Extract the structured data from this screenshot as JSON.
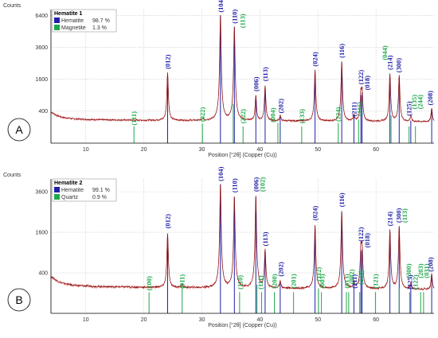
{
  "colors": {
    "phase1": "#1f1fa8",
    "phase2": "#1fa84a",
    "trace": "#8a1010",
    "trace_noise": "#e07070",
    "axis": "#000000",
    "grid": "#c8c8c8"
  },
  "chart_data": [
    {
      "type": "line",
      "panel_label": "A",
      "title": "",
      "ylabel": "Counts",
      "xlabel": "Position [°2θ] (Copper (Cu))",
      "xlim": [
        4,
        70
      ],
      "xticks": [
        10,
        20,
        30,
        40,
        50,
        60
      ],
      "yticks": [
        400,
        1600,
        3600,
        6400
      ],
      "ylim": [
        0,
        7000
      ],
      "y_scale": "sqrt",
      "grid": true,
      "legend": {
        "placement": "top-left",
        "title": "Hematite 1",
        "entries": [
          {
            "name": "Hematite",
            "value": "98.7 %",
            "color": "#1f1fa8"
          },
          {
            "name": "Magnetite",
            "value": "1.3 %",
            "color": "#1fa84a"
          }
        ]
      },
      "baseline": [
        [
          4,
          380
        ],
        [
          5,
          300
        ],
        [
          6,
          260
        ],
        [
          8,
          230
        ],
        [
          12,
          215
        ],
        [
          20,
          205
        ],
        [
          30,
          200
        ],
        [
          40,
          195
        ],
        [
          50,
          190
        ],
        [
          60,
          185
        ],
        [
          70,
          180
        ]
      ],
      "peaks": [
        {
          "x": 24.1,
          "y": 1950
        },
        {
          "x": 30.2,
          "y": 230
        },
        {
          "x": 33.2,
          "y": 6400
        },
        {
          "x": 35.6,
          "y": 5300
        },
        {
          "x": 39.3,
          "y": 900
        },
        {
          "x": 40.9,
          "y": 1300
        },
        {
          "x": 43.5,
          "y": 300
        },
        {
          "x": 49.5,
          "y": 2100
        },
        {
          "x": 54.1,
          "y": 2600
        },
        {
          "x": 56.2,
          "y": 310
        },
        {
          "x": 57.4,
          "y": 950
        },
        {
          "x": 57.6,
          "y": 1050
        },
        {
          "x": 62.4,
          "y": 1900
        },
        {
          "x": 64.0,
          "y": 1800
        },
        {
          "x": 66.0,
          "y": 300
        },
        {
          "x": 69.6,
          "y": 480
        }
      ],
      "ref_lines": [
        {
          "x": 24.1,
          "h": 1650,
          "phase": 1
        },
        {
          "x": 33.2,
          "h": 6400,
          "phase": 1
        },
        {
          "x": 35.6,
          "h": 5300,
          "phase": 1
        },
        {
          "x": 39.3,
          "h": 750,
          "phase": 1
        },
        {
          "x": 40.9,
          "h": 1200,
          "phase": 1
        },
        {
          "x": 43.5,
          "h": 300,
          "phase": 1
        },
        {
          "x": 49.5,
          "h": 2000,
          "phase": 1
        },
        {
          "x": 54.1,
          "h": 2600,
          "phase": 1
        },
        {
          "x": 56.2,
          "h": 300,
          "phase": 1
        },
        {
          "x": 57.4,
          "h": 900,
          "phase": 1
        },
        {
          "x": 57.6,
          "h": 1000,
          "phase": 1
        },
        {
          "x": 62.4,
          "h": 1700,
          "phase": 1
        },
        {
          "x": 64.0,
          "h": 1700,
          "phase": 1
        },
        {
          "x": 66.0,
          "h": 200,
          "phase": 1
        },
        {
          "x": 69.6,
          "h": 450,
          "phase": 1
        },
        {
          "x": 18.3,
          "h": 110,
          "phase": 2
        },
        {
          "x": 30.1,
          "h": 150,
          "phase": 2
        },
        {
          "x": 35.4,
          "h": 600,
          "phase": 2
        },
        {
          "x": 37.1,
          "h": 110,
          "phase": 2
        },
        {
          "x": 43.1,
          "h": 160,
          "phase": 2
        },
        {
          "x": 47.2,
          "h": 110,
          "phase": 2
        },
        {
          "x": 53.5,
          "h": 160,
          "phase": 2
        },
        {
          "x": 57.0,
          "h": 220,
          "phase": 2
        },
        {
          "x": 62.6,
          "h": 300,
          "phase": 2
        },
        {
          "x": 65.7,
          "h": 110,
          "phase": 2
        },
        {
          "x": 66.8,
          "h": 110,
          "phase": 2
        }
      ],
      "annotations": [
        {
          "text": "(111)",
          "x": 18.3,
          "y": 125,
          "phase": 2
        },
        {
          "text": "(012)",
          "x": 24.1,
          "y": 2150,
          "phase": 1
        },
        {
          "text": "(022)",
          "x": 30.1,
          "y": 180,
          "phase": 2
        },
        {
          "text": "(104)",
          "x": 33.2,
          "y": 6700,
          "phase": 1
        },
        {
          "text": "(110)",
          "x": 35.6,
          "y": 5600,
          "phase": 1
        },
        {
          "text": "(113)",
          "x": 37.0,
          "y": 5200,
          "phase": 2
        },
        {
          "text": "(222)",
          "x": 37.1,
          "y": 150,
          "phase": 2
        },
        {
          "text": "(006)",
          "x": 39.3,
          "y": 1050,
          "phase": 1
        },
        {
          "text": "(113)",
          "x": 40.9,
          "y": 1500,
          "phase": 1
        },
        {
          "text": "(004)",
          "x": 42.2,
          "y": 170,
          "phase": 2
        },
        {
          "text": "(202)",
          "x": 43.6,
          "y": 350,
          "phase": 1
        },
        {
          "text": "(133)",
          "x": 47.2,
          "y": 150,
          "phase": 2
        },
        {
          "text": "(024)",
          "x": 49.5,
          "y": 2300,
          "phase": 1
        },
        {
          "text": "(224)",
          "x": 53.5,
          "y": 180,
          "phase": 2
        },
        {
          "text": "(116)",
          "x": 54.1,
          "y": 2850,
          "phase": 1
        },
        {
          "text": "(211)",
          "x": 56.2,
          "y": 280,
          "phase": 1
        },
        {
          "text": "(115)",
          "x": 57.2,
          "y": 290,
          "phase": 2
        },
        {
          "text": "(122)",
          "x": 57.4,
          "y": 1350,
          "phase": 1
        },
        {
          "text": "(018)",
          "x": 58.5,
          "y": 1100,
          "phase": 1
        },
        {
          "text": "(044)",
          "x": 61.5,
          "y": 2700,
          "phase": 2
        },
        {
          "text": "(214)",
          "x": 62.4,
          "y": 2100,
          "phase": 1
        },
        {
          "text": "(300)",
          "x": 63.9,
          "y": 1950,
          "phase": 1
        },
        {
          "text": "(125)",
          "x": 65.7,
          "y": 290,
          "phase": 1
        },
        {
          "text": "(135)",
          "x": 66.6,
          "y": 450,
          "phase": 2
        },
        {
          "text": "(244)",
          "x": 67.6,
          "y": 450,
          "phase": 2
        },
        {
          "text": "(208)",
          "x": 69.3,
          "y": 560,
          "phase": 1
        }
      ]
    },
    {
      "type": "line",
      "panel_label": "B",
      "title": "",
      "ylabel": "Counts",
      "xlabel": "Position [°2θ] (Copper (Cu))",
      "xlim": [
        4,
        70
      ],
      "xticks": [
        10,
        20,
        30,
        40,
        50,
        60
      ],
      "yticks": [
        400,
        1600,
        3600
      ],
      "ylim": [
        0,
        4400
      ],
      "y_scale": "sqrt",
      "grid": true,
      "legend": {
        "placement": "top-left",
        "title": "Hematite 2",
        "entries": [
          {
            "name": "Hematite",
            "value": "99.1 %",
            "color": "#1f1fa8"
          },
          {
            "name": "Quartz",
            "value": "0.9 %",
            "color": "#1fa84a"
          }
        ]
      },
      "baseline": [
        [
          4,
          330
        ],
        [
          5,
          260
        ],
        [
          6,
          220
        ],
        [
          8,
          190
        ],
        [
          12,
          175
        ],
        [
          20,
          165
        ],
        [
          30,
          160
        ],
        [
          40,
          155
        ],
        [
          50,
          150
        ],
        [
          60,
          145
        ],
        [
          70,
          140
        ]
      ],
      "peaks": [
        {
          "x": 24.1,
          "y": 1550
        },
        {
          "x": 26.6,
          "y": 200
        },
        {
          "x": 33.2,
          "y": 4050
        },
        {
          "x": 35.6,
          "y": 3300
        },
        {
          "x": 39.3,
          "y": 3350
        },
        {
          "x": 40.9,
          "y": 1000
        },
        {
          "x": 43.5,
          "y": 260
        },
        {
          "x": 49.5,
          "y": 1900
        },
        {
          "x": 54.1,
          "y": 2550
        },
        {
          "x": 56.2,
          "y": 240
        },
        {
          "x": 57.4,
          "y": 1000
        },
        {
          "x": 57.6,
          "y": 1050
        },
        {
          "x": 62.4,
          "y": 1700
        },
        {
          "x": 64.0,
          "y": 1850
        },
        {
          "x": 66.0,
          "y": 220
        },
        {
          "x": 69.6,
          "y": 380
        }
      ],
      "ref_lines": [
        {
          "x": 24.1,
          "h": 1500,
          "phase": 1
        },
        {
          "x": 33.2,
          "h": 4050,
          "phase": 1
        },
        {
          "x": 35.6,
          "h": 3300,
          "phase": 1
        },
        {
          "x": 39.3,
          "h": 3300,
          "phase": 1
        },
        {
          "x": 40.9,
          "h": 950,
          "phase": 1
        },
        {
          "x": 43.5,
          "h": 250,
          "phase": 1
        },
        {
          "x": 49.5,
          "h": 1800,
          "phase": 1
        },
        {
          "x": 54.1,
          "h": 2500,
          "phase": 1
        },
        {
          "x": 56.2,
          "h": 220,
          "phase": 1
        },
        {
          "x": 57.4,
          "h": 950,
          "phase": 1
        },
        {
          "x": 57.6,
          "h": 1000,
          "phase": 1
        },
        {
          "x": 62.4,
          "h": 1650,
          "phase": 1
        },
        {
          "x": 64.0,
          "h": 1800,
          "phase": 1
        },
        {
          "x": 66.0,
          "h": 200,
          "phase": 1
        },
        {
          "x": 69.6,
          "h": 360,
          "phase": 1
        },
        {
          "x": 20.9,
          "h": 110,
          "phase": 2
        },
        {
          "x": 26.6,
          "h": 180,
          "phase": 2
        },
        {
          "x": 36.5,
          "h": 110,
          "phase": 2
        },
        {
          "x": 39.5,
          "h": 200,
          "phase": 2
        },
        {
          "x": 40.3,
          "h": 110,
          "phase": 2
        },
        {
          "x": 42.5,
          "h": 110,
          "phase": 2
        },
        {
          "x": 45.8,
          "h": 110,
          "phase": 2
        },
        {
          "x": 50.1,
          "h": 150,
          "phase": 2
        },
        {
          "x": 50.6,
          "h": 110,
          "phase": 2
        },
        {
          "x": 54.9,
          "h": 110,
          "phase": 2
        },
        {
          "x": 55.3,
          "h": 110,
          "phase": 2
        },
        {
          "x": 57.2,
          "h": 110,
          "phase": 2
        },
        {
          "x": 59.9,
          "h": 110,
          "phase": 2
        },
        {
          "x": 64.0,
          "h": 150,
          "phase": 2
        },
        {
          "x": 65.8,
          "h": 110,
          "phase": 2
        },
        {
          "x": 67.7,
          "h": 110,
          "phase": 2
        },
        {
          "x": 68.2,
          "h": 110,
          "phase": 2
        }
      ],
      "annotations": [
        {
          "text": "(100)",
          "x": 20.9,
          "y": 125,
          "phase": 2
        },
        {
          "text": "(012)",
          "x": 24.1,
          "y": 1750,
          "phase": 1
        },
        {
          "text": "(011)",
          "x": 26.6,
          "y": 150,
          "phase": 2
        },
        {
          "text": "(104)",
          "x": 33.2,
          "y": 4250,
          "phase": 1
        },
        {
          "text": "(110)",
          "x": 35.6,
          "y": 3550,
          "phase": 1
        },
        {
          "text": "(110)",
          "x": 36.6,
          "y": 140,
          "phase": 2
        },
        {
          "text": "(006)",
          "x": 39.3,
          "y": 3600,
          "phase": 1
        },
        {
          "text": "(102)",
          "x": 40.4,
          "y": 3600,
          "phase": 2
        },
        {
          "text": "(111)",
          "x": 40.1,
          "y": 140,
          "phase": 2
        },
        {
          "text": "(113)",
          "x": 40.9,
          "y": 1100,
          "phase": 1
        },
        {
          "text": "(200)",
          "x": 42.5,
          "y": 150,
          "phase": 2
        },
        {
          "text": "(202)",
          "x": 43.6,
          "y": 330,
          "phase": 1
        },
        {
          "text": "(201)",
          "x": 45.8,
          "y": 150,
          "phase": 2
        },
        {
          "text": "(024)",
          "x": 49.5,
          "y": 2100,
          "phase": 1
        },
        {
          "text": "(112)",
          "x": 50.1,
          "y": 250,
          "phase": 2
        },
        {
          "text": "(003)",
          "x": 50.7,
          "y": 150,
          "phase": 2
        },
        {
          "text": "(116)",
          "x": 54.1,
          "y": 2750,
          "phase": 1
        },
        {
          "text": "(013)",
          "x": 55.0,
          "y": 150,
          "phase": 2
        },
        {
          "text": "(002)",
          "x": 55.8,
          "y": 210,
          "phase": 2
        },
        {
          "text": "(211)",
          "x": 56.3,
          "y": 150,
          "phase": 1
        },
        {
          "text": "(210)",
          "x": 57.4,
          "y": 200,
          "phase": 2
        },
        {
          "text": "(122)",
          "x": 57.4,
          "y": 1250,
          "phase": 1
        },
        {
          "text": "(018)",
          "x": 58.5,
          "y": 1050,
          "phase": 1
        },
        {
          "text": "(121)",
          "x": 59.9,
          "y": 150,
          "phase": 2
        },
        {
          "text": "(214)",
          "x": 62.4,
          "y": 1850,
          "phase": 1
        },
        {
          "text": "(300)",
          "x": 63.9,
          "y": 2000,
          "phase": 1
        },
        {
          "text": "(113)",
          "x": 64.9,
          "y": 2000,
          "phase": 2
        },
        {
          "text": "(300)",
          "x": 65.6,
          "y": 300,
          "phase": 2
        },
        {
          "text": "(125)",
          "x": 65.8,
          "y": 140,
          "phase": 1
        },
        {
          "text": "(122)",
          "x": 66.8,
          "y": 140,
          "phase": 2
        },
        {
          "text": "(203)",
          "x": 67.7,
          "y": 300,
          "phase": 2
        },
        {
          "text": "(031)",
          "x": 68.7,
          "y": 300,
          "phase": 2
        },
        {
          "text": "(208)",
          "x": 69.4,
          "y": 420,
          "phase": 1
        }
      ]
    }
  ]
}
